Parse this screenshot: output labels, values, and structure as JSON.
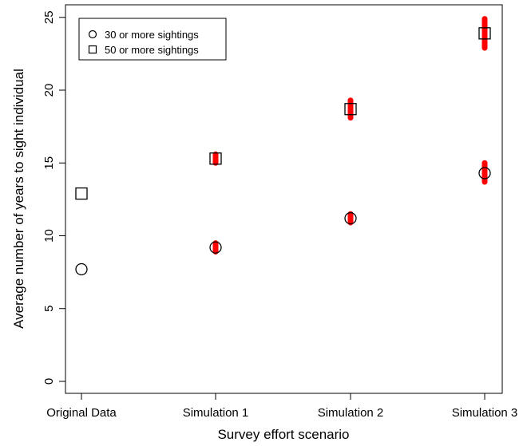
{
  "chart_data": {
    "type": "scatter",
    "title": "",
    "xlabel": "Survey effort scenario",
    "ylabel": "Average number of years to sight individual",
    "categories": [
      "Original Data",
      "Simulation 1",
      "Simulation 2",
      "Simulation 3"
    ],
    "yticks": [
      "0",
      "5",
      "10",
      "15",
      "20",
      "25"
    ],
    "ylim": [
      -1,
      26
    ],
    "grid": false,
    "legend_position": "top-left",
    "series": [
      {
        "name": "30 or more sightings",
        "marker": "circle",
        "values": [
          7.7,
          9.2,
          11.2,
          14.3
        ]
      },
      {
        "name": "50 or more sightings",
        "marker": "square",
        "values": [
          12.9,
          15.3,
          18.7,
          23.9
        ]
      }
    ],
    "simulation_ranges": {
      "color": "#ff0000",
      "ranges": [
        {
          "category": "Simulation 1",
          "low": 8.9,
          "high": 9.5
        },
        {
          "category": "Simulation 1",
          "low": 15.0,
          "high": 15.6
        },
        {
          "category": "Simulation 2",
          "low": 10.9,
          "high": 11.5
        },
        {
          "category": "Simulation 2",
          "low": 18.1,
          "high": 19.3
        },
        {
          "category": "Simulation 3",
          "low": 13.7,
          "high": 15.0
        },
        {
          "category": "Simulation 3",
          "low": 22.9,
          "high": 24.9
        }
      ]
    }
  }
}
